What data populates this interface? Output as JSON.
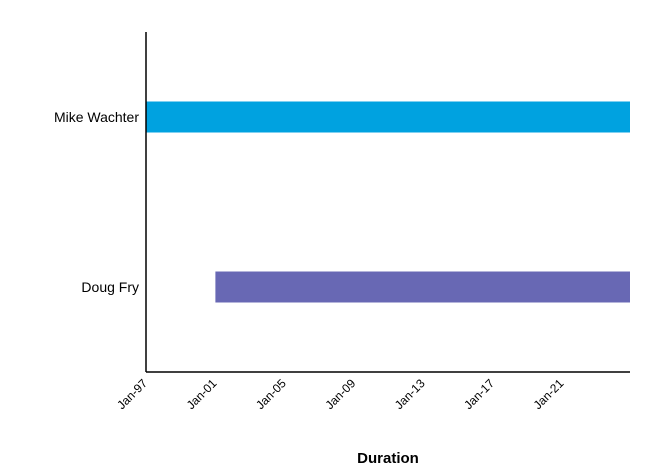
{
  "chart_data": {
    "type": "bar",
    "orientation": "horizontal",
    "xlabel": "Duration",
    "ylabel": "",
    "title": "",
    "categories": [
      "Mike Wachter",
      "Doug Fry"
    ],
    "x_ticks": [
      "Jan-97",
      "Jan-01",
      "Jan-05",
      "Jan-09",
      "Jan-13",
      "Jan-17",
      "Jan-21"
    ],
    "x_tick_years": [
      1997,
      2001,
      2005,
      2009,
      2013,
      2017,
      2021
    ],
    "xlim": [
      "Jan-97",
      "Dec-24"
    ],
    "xlim_years": [
      1997,
      2024.9
    ],
    "bars": [
      {
        "label": "Mike Wachter",
        "start": "Jan-97",
        "end": "Dec-24",
        "start_year": 1997,
        "end_year": 2024.9,
        "color": "#00a2e0"
      },
      {
        "label": "Doug Fry",
        "start": "Jan-01",
        "end": "Dec-24",
        "start_year": 2001,
        "end_year": 2024.9,
        "color": "#6868b4"
      }
    ],
    "grid": false,
    "legend": "none"
  }
}
